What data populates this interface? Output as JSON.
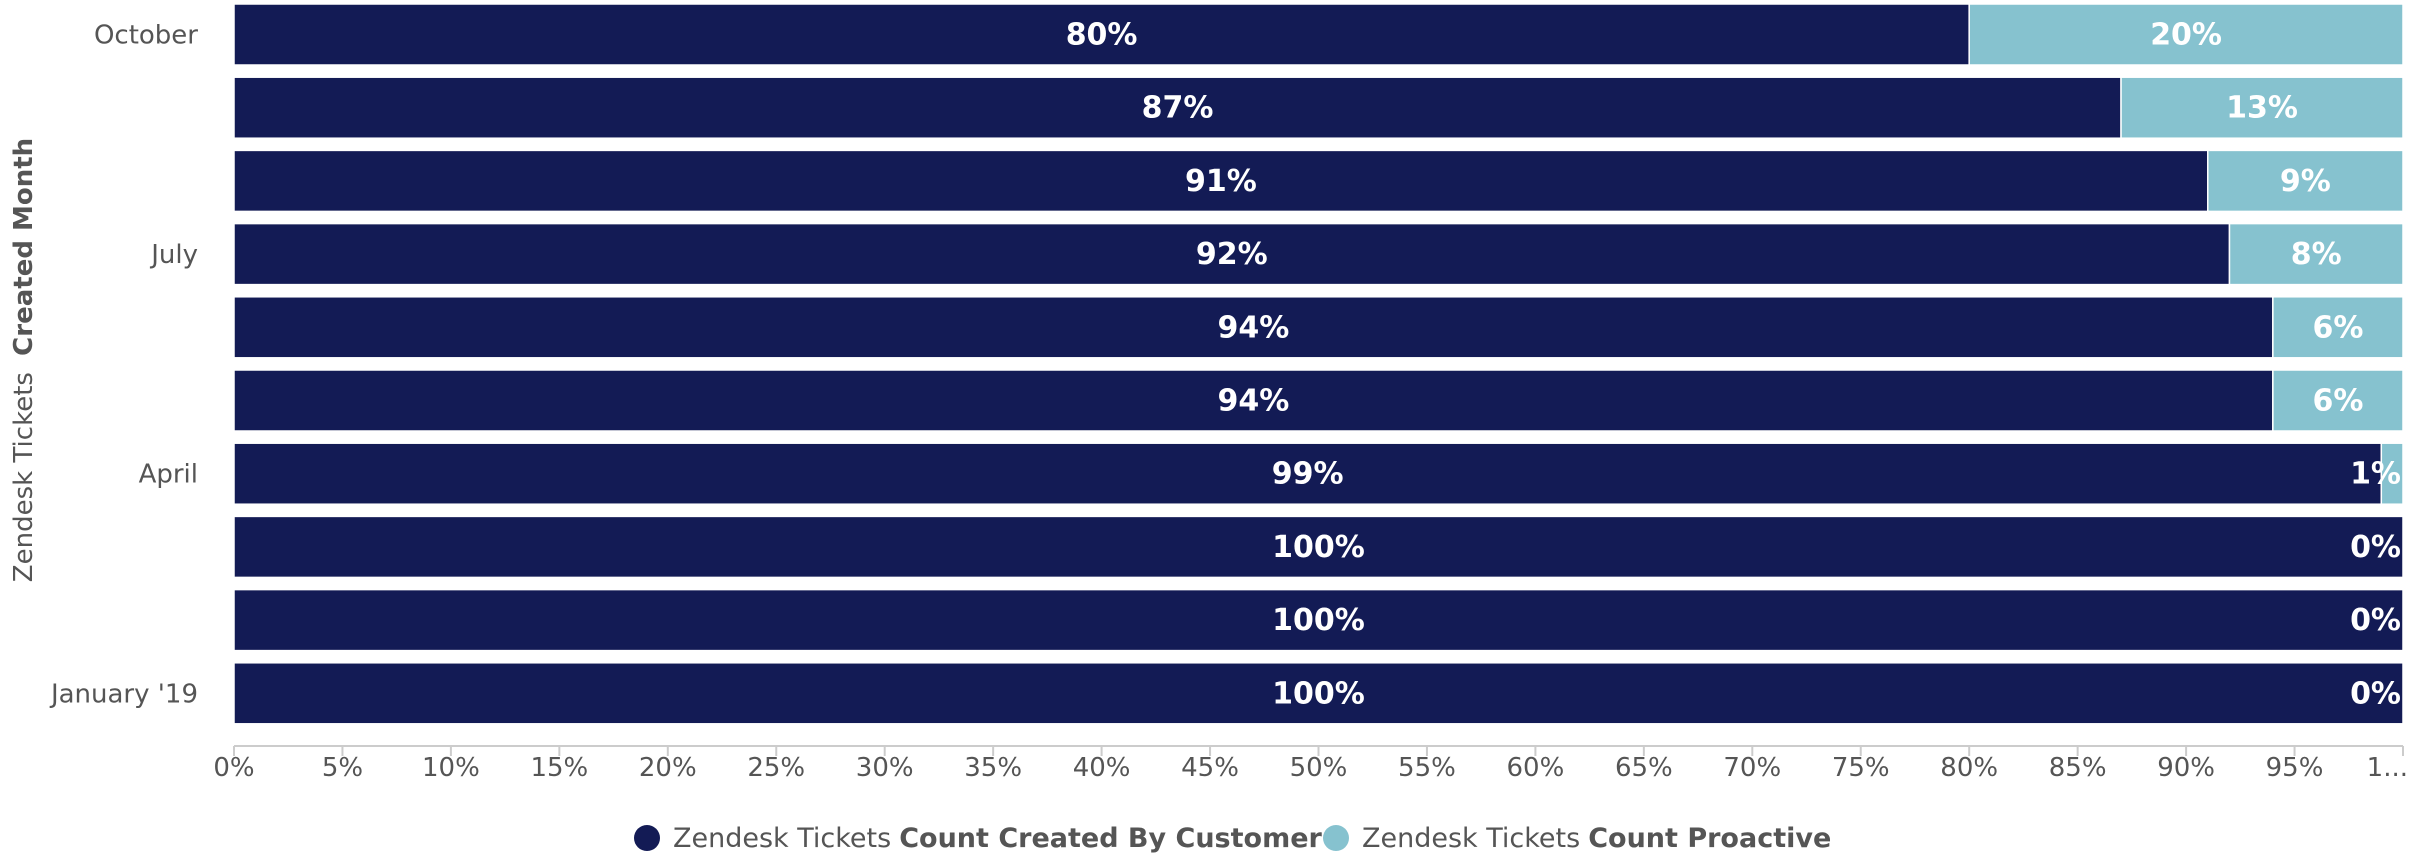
{
  "chart_data": {
    "type": "bar",
    "orientation": "horizontal",
    "stacked": "percent",
    "categories": [
      "October",
      "",
      "",
      "July",
      "",
      "",
      "April",
      "",
      "",
      "January '19"
    ],
    "series": [
      {
        "name": "Zendesk Tickets Count Created By Customer",
        "name_prefix": "Zendesk Tickets",
        "name_bold": "Count Created By Customer",
        "color": "#131b55",
        "values": [
          80,
          87,
          91,
          92,
          94,
          94,
          99,
          100,
          100,
          100
        ],
        "labels": [
          "80%",
          "87%",
          "91%",
          "92%",
          "94%",
          "94%",
          "99%",
          "100%",
          "100%",
          "100%"
        ]
      },
      {
        "name": "Zendesk Tickets Count Proactive",
        "name_prefix": "Zendesk Tickets",
        "name_bold": "Count Proactive",
        "color": "#86c2cf",
        "values": [
          20,
          13,
          9,
          8,
          6,
          6,
          1,
          0,
          0,
          0
        ],
        "labels": [
          "20%",
          "13%",
          "9%",
          "8%",
          "6%",
          "6%",
          "1%",
          "0%",
          "0%",
          "0%"
        ]
      }
    ],
    "xlabel": "",
    "ylabel": "Zendesk Tickets Created Month",
    "ylabel_prefix": "Zendesk Tickets",
    "ylabel_bold": "Created Month",
    "xlim": [
      0,
      100
    ],
    "xticks": [
      "0%",
      "5%",
      "10%",
      "15%",
      "20%",
      "25%",
      "30%",
      "35%",
      "40%",
      "45%",
      "50%",
      "55%",
      "60%",
      "65%",
      "70%",
      "75%",
      "80%",
      "85%",
      "90%",
      "95%",
      "1..."
    ],
    "grid": false,
    "legend": "bottom-center"
  }
}
